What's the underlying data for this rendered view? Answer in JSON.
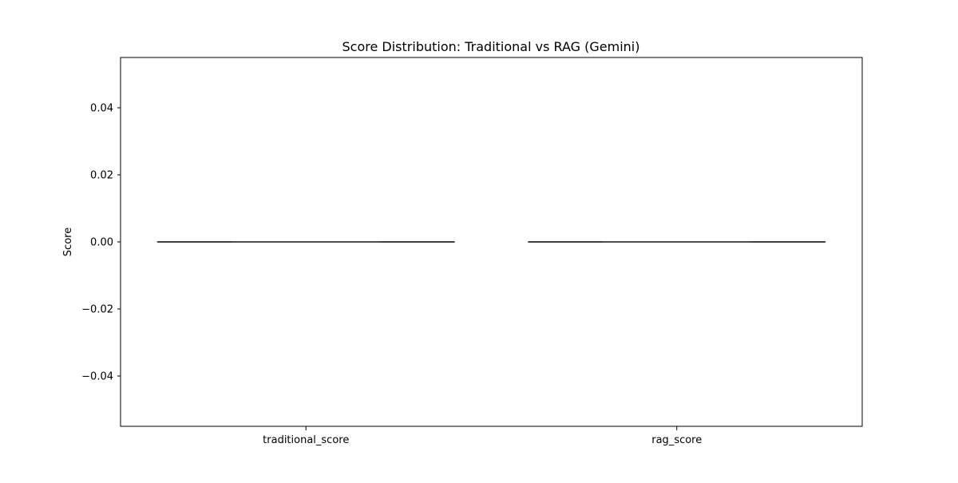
{
  "chart_data": {
    "type": "box",
    "title": "Score Distribution: Traditional vs RAG (Gemini)",
    "xlabel": "",
    "ylabel": "Score",
    "categories": [
      "traditional_score",
      "rag_score"
    ],
    "boxes": [
      {
        "category": "traditional_score",
        "min": 0.0,
        "q1": 0.0,
        "median": 0.0,
        "q3": 0.0,
        "max": 0.0
      },
      {
        "category": "rag_score",
        "min": 0.0,
        "q1": 0.0,
        "median": 0.0,
        "q3": 0.0,
        "max": 0.0
      }
    ],
    "ylim": [
      -0.055,
      0.055
    ],
    "yticks": [
      -0.04,
      -0.02,
      0.0,
      0.02,
      0.04
    ],
    "ytick_labels": [
      "−0.04",
      "−0.02",
      "0.00",
      "0.02",
      "0.04"
    ],
    "grid": false,
    "legend": "none",
    "colors": {
      "box_line": "#3f3f3f",
      "axes": "#000000",
      "background": "#ffffff"
    }
  }
}
